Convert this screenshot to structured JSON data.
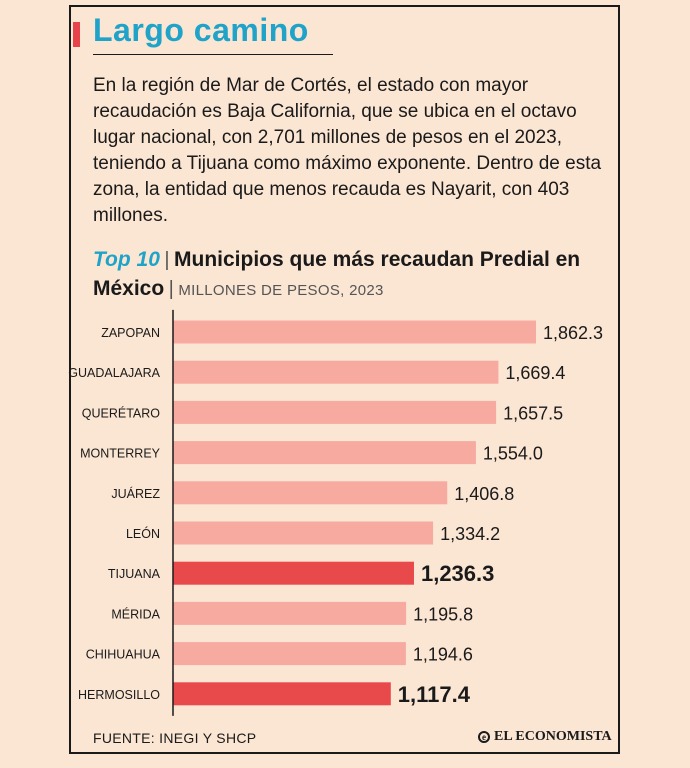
{
  "title": "Largo camino",
  "intro": "En la región de Mar de Cortés, el estado con mayor recaudación es Baja California, que se ubica en el octavo lugar nacional, con 2,701 millones de pesos en el 2023, teniendo a Tijuana como máximo exponente. Dentro de esta zona, la entidad que menos recauda es Nayarit, con 403 millones.",
  "heading": {
    "lead": "Top 10",
    "separator": "|",
    "title": "Municipios que más recaudan Predial en México",
    "unit": "MILLONES DE PESOS, 2023"
  },
  "source": "FUENTE: INEGI Y SHCP",
  "brand": "EL ECONOMISTA",
  "colors": {
    "background": "#fbe5d3",
    "accent_title": "#1fa3c9",
    "bar": "#f6aaa0",
    "bar_highlight": "#e84a4c",
    "text": "#1a1a1a"
  },
  "chart_data": {
    "type": "bar",
    "orientation": "horizontal",
    "categories": [
      "ZAPOPAN",
      "GUADALAJARA",
      "QUERÉTARO",
      "MONTERREY",
      "JUÁREZ",
      "LEÓN",
      "TIJUANA",
      "MÉRIDA",
      "CHIHUAHUA",
      "HERMOSILLO"
    ],
    "values": [
      1862.3,
      1669.4,
      1657.5,
      1554.0,
      1406.8,
      1334.2,
      1236.3,
      1195.8,
      1194.6,
      1117.4
    ],
    "value_labels": [
      "1,862.3",
      "1,669.4",
      "1,657.5",
      "1,554.0",
      "1,406.8",
      "1,334.2",
      "1,236.3",
      "1,195.8",
      "1,194.6",
      "1,117.4"
    ],
    "highlighted": [
      "TIJUANA",
      "HERMOSILLO"
    ],
    "xlim": [
      0,
      1862.3
    ],
    "grid": false,
    "legend": "none"
  }
}
